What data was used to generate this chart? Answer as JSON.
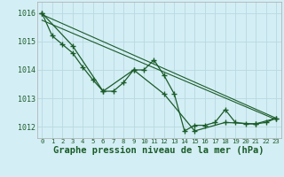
{
  "background_color": "#d4eef5",
  "grid_color": "#b8d8e0",
  "line_color": "#1a5c28",
  "marker_color": "#1a5c28",
  "xlabel": "Graphe pression niveau de la mer (hPa)",
  "xlabel_fontsize": 7.5,
  "xlim": [
    -0.5,
    23.5
  ],
  "ylim": [
    1011.6,
    1016.4
  ],
  "yticks": [
    1012,
    1013,
    1014,
    1015,
    1016
  ],
  "xticks": [
    0,
    1,
    2,
    3,
    4,
    5,
    6,
    7,
    8,
    9,
    10,
    11,
    12,
    13,
    14,
    15,
    16,
    17,
    18,
    19,
    20,
    21,
    22,
    23
  ],
  "series1_x": [
    0,
    1,
    2,
    3,
    4,
    5,
    6,
    7,
    8,
    9,
    10,
    11,
    12,
    13,
    14,
    15,
    16,
    17,
    18,
    19,
    20,
    21,
    22,
    23
  ],
  "series1_y": [
    1016.0,
    1015.2,
    1014.9,
    1014.6,
    1014.1,
    1013.65,
    1013.25,
    1013.25,
    1013.55,
    1014.0,
    1014.0,
    1014.35,
    1013.8,
    1013.15,
    1011.85,
    1012.05,
    1012.05,
    1012.15,
    1012.6,
    1012.15,
    1012.1,
    1012.1,
    1012.15,
    1012.3
  ],
  "series2_x": [
    0,
    3,
    6,
    9,
    12,
    15,
    18,
    21,
    23
  ],
  "series2_y": [
    1016.0,
    1014.85,
    1013.25,
    1014.0,
    1013.15,
    1011.85,
    1012.15,
    1012.1,
    1012.3
  ],
  "series3_x": [
    0,
    23
  ],
  "series3_y": [
    1015.95,
    1012.3
  ],
  "series4_x": [
    0,
    23
  ],
  "series4_y": [
    1015.75,
    1012.25
  ]
}
